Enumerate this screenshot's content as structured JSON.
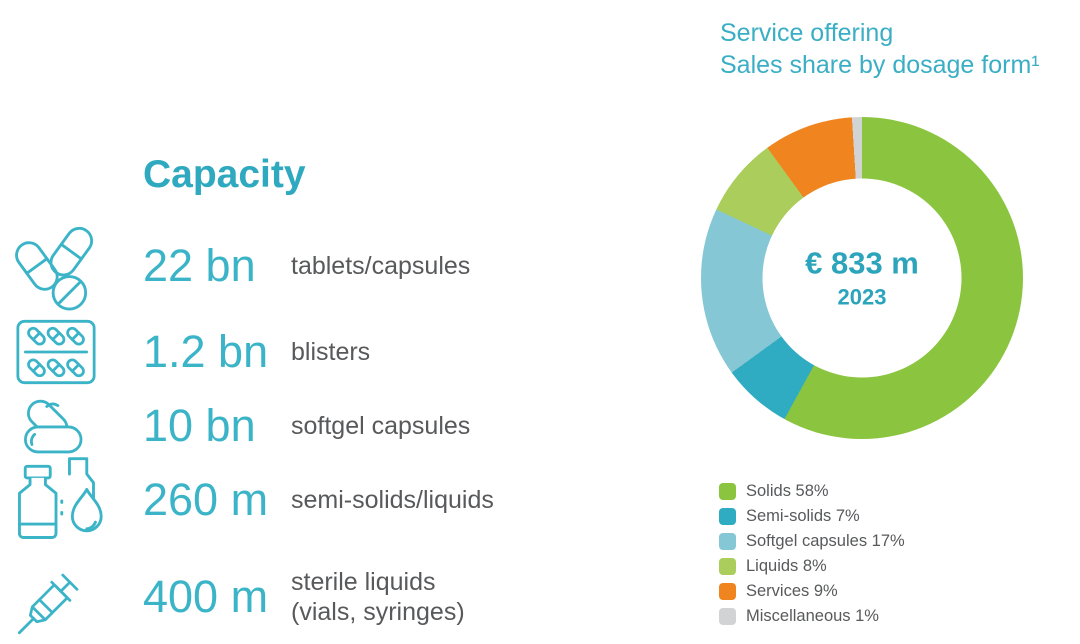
{
  "colors": {
    "teal_heading": "#2FA9BF",
    "teal_value": "#3CB4C8",
    "teal_title": "#3AAEC4",
    "teal_center": "#2CA4BB",
    "text_gray": "#58595B",
    "background": "#FFFFFF"
  },
  "capacity": {
    "heading": "Capacity",
    "rows": [
      {
        "icon": "pills-icon",
        "value": "22 bn",
        "label": "tablets/capsules"
      },
      {
        "icon": "blister-pack-icon",
        "value": "1.2 bn",
        "label": "blisters"
      },
      {
        "icon": "softgel-capsules-icon",
        "value": "10 bn",
        "label": "softgel capsules"
      },
      {
        "icon": "bottles-droplet-icon",
        "value": "260 m",
        "label": "semi-solids/liquids"
      },
      {
        "icon": "syringe-icon",
        "value": "400 m",
        "label": "sterile liquids\n(vials, syringes)"
      }
    ]
  },
  "chart": {
    "title_line1": "Service offering",
    "title_line2": "Sales share by dosage form¹"
  },
  "chart_data": {
    "type": "pie",
    "subtype": "donut",
    "title": "Service offering — Sales share by dosage form",
    "center_value": "€ 833 m",
    "center_year": "2023",
    "start_angle_deg": 0,
    "direction": "clockwise",
    "legend_position": "bottom-left",
    "segments": [
      {
        "label": "Solids",
        "value_pct": 58,
        "color": "#8BC53F",
        "legend_text": "Solids 58%"
      },
      {
        "label": "Semi-solids",
        "value_pct": 7,
        "color": "#2FACC2",
        "legend_text": "Semi-solids 7%"
      },
      {
        "label": "Softgel capsules",
        "value_pct": 17,
        "color": "#85C7D5",
        "legend_text": "Softgel capsules 17%"
      },
      {
        "label": "Liquids",
        "value_pct": 8,
        "color": "#AACD5B",
        "legend_text": "Liquids 8%"
      },
      {
        "label": "Services",
        "value_pct": 9,
        "color": "#F0851F",
        "legend_text": "Services 9%"
      },
      {
        "label": "Miscellaneous",
        "value_pct": 1,
        "color": "#D2D3D4",
        "legend_text": "Miscellaneous 1%"
      }
    ]
  }
}
